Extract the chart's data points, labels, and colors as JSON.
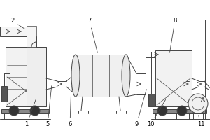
{
  "bg_color": "#ffffff",
  "line_color": "#444444",
  "line_width": 0.7,
  "label_fontsize": 6.0,
  "fig_width": 3.0,
  "fig_height": 2.0,
  "dpi": 100
}
